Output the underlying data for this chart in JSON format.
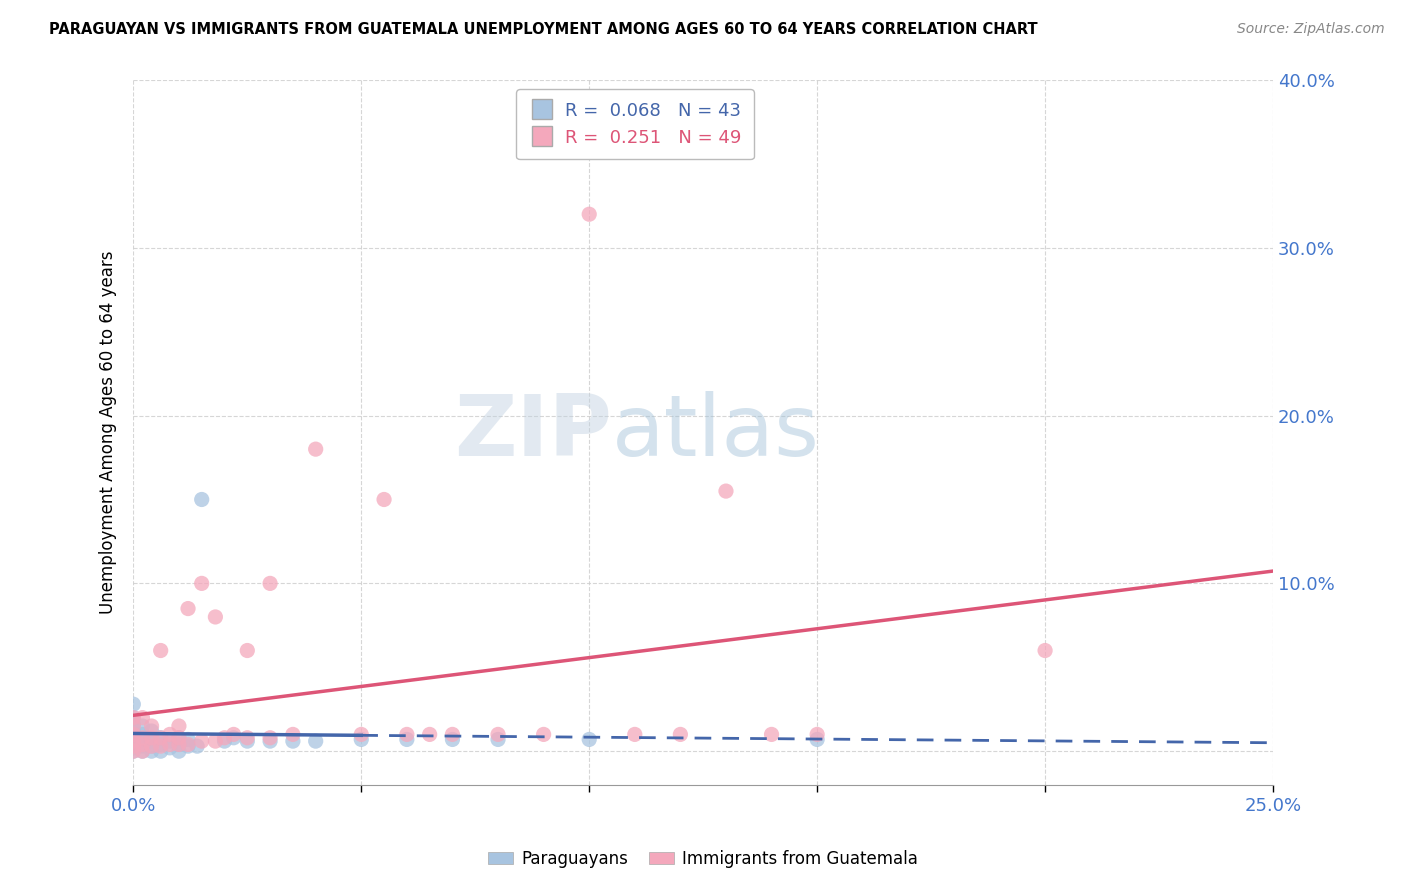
{
  "title": "PARAGUAYAN VS IMMIGRANTS FROM GUATEMALA UNEMPLOYMENT AMONG AGES 60 TO 64 YEARS CORRELATION CHART",
  "source": "Source: ZipAtlas.com",
  "xlim": [
    0.0,
    0.25
  ],
  "ylim": [
    -0.02,
    0.4
  ],
  "blue_R": 0.068,
  "blue_N": 43,
  "pink_R": 0.251,
  "pink_N": 49,
  "blue_color": "#a8c4e0",
  "pink_color": "#f4a8bc",
  "blue_line_color": "#4466aa",
  "pink_line_color": "#dd5577",
  "axis_label_color": "#4477cc",
  "legend_label_blue": "Paraguayans",
  "legend_label_pink": "Immigrants from Guatemala",
  "ylabel": "Unemployment Among Ages 60 to 64 years",
  "watermark_left": "ZIP",
  "watermark_right": "atlas",
  "grid_color": "#cccccc",
  "yticks": [
    0.0,
    0.1,
    0.2,
    0.3,
    0.4
  ],
  "ytick_labels": [
    "",
    "10.0%",
    "20.0%",
    "30.0%",
    "40.0%"
  ],
  "xtick_labels": [
    "0.0%",
    "",
    "",
    "",
    "",
    "25.0%"
  ],
  "blue_x": [
    0.0,
    0.0,
    0.0,
    0.0,
    0.0,
    0.0,
    0.0,
    0.0,
    0.0,
    0.0,
    0.002,
    0.002,
    0.002,
    0.002,
    0.002,
    0.004,
    0.004,
    0.004,
    0.004,
    0.006,
    0.006,
    0.006,
    0.008,
    0.008,
    0.01,
    0.01,
    0.01,
    0.012,
    0.012,
    0.014,
    0.015,
    0.02,
    0.022,
    0.025,
    0.03,
    0.035,
    0.04,
    0.05,
    0.06,
    0.07,
    0.08,
    0.1,
    0.15
  ],
  "blue_y": [
    0.0,
    0.002,
    0.004,
    0.006,
    0.008,
    0.01,
    0.012,
    0.016,
    0.02,
    0.028,
    0.0,
    0.003,
    0.006,
    0.01,
    0.015,
    0.0,
    0.003,
    0.006,
    0.012,
    0.0,
    0.004,
    0.008,
    0.002,
    0.006,
    0.0,
    0.004,
    0.008,
    0.003,
    0.007,
    0.003,
    0.15,
    0.006,
    0.008,
    0.006,
    0.006,
    0.006,
    0.006,
    0.007,
    0.007,
    0.007,
    0.007,
    0.007,
    0.007
  ],
  "pink_x": [
    0.0,
    0.0,
    0.0,
    0.0,
    0.0,
    0.0,
    0.002,
    0.002,
    0.002,
    0.002,
    0.004,
    0.004,
    0.004,
    0.006,
    0.006,
    0.006,
    0.008,
    0.008,
    0.01,
    0.01,
    0.01,
    0.012,
    0.012,
    0.015,
    0.015,
    0.018,
    0.018,
    0.02,
    0.022,
    0.025,
    0.025,
    0.03,
    0.03,
    0.035,
    0.04,
    0.05,
    0.055,
    0.06,
    0.065,
    0.07,
    0.08,
    0.09,
    0.1,
    0.11,
    0.12,
    0.13,
    0.14,
    0.15,
    0.2
  ],
  "pink_y": [
    0.0,
    0.003,
    0.006,
    0.01,
    0.015,
    0.02,
    0.0,
    0.004,
    0.008,
    0.02,
    0.003,
    0.008,
    0.015,
    0.003,
    0.008,
    0.06,
    0.004,
    0.01,
    0.004,
    0.008,
    0.015,
    0.004,
    0.085,
    0.006,
    0.1,
    0.006,
    0.08,
    0.008,
    0.01,
    0.008,
    0.06,
    0.008,
    0.1,
    0.01,
    0.18,
    0.01,
    0.15,
    0.01,
    0.01,
    0.01,
    0.01,
    0.01,
    0.32,
    0.01,
    0.01,
    0.155,
    0.01,
    0.01,
    0.06
  ]
}
